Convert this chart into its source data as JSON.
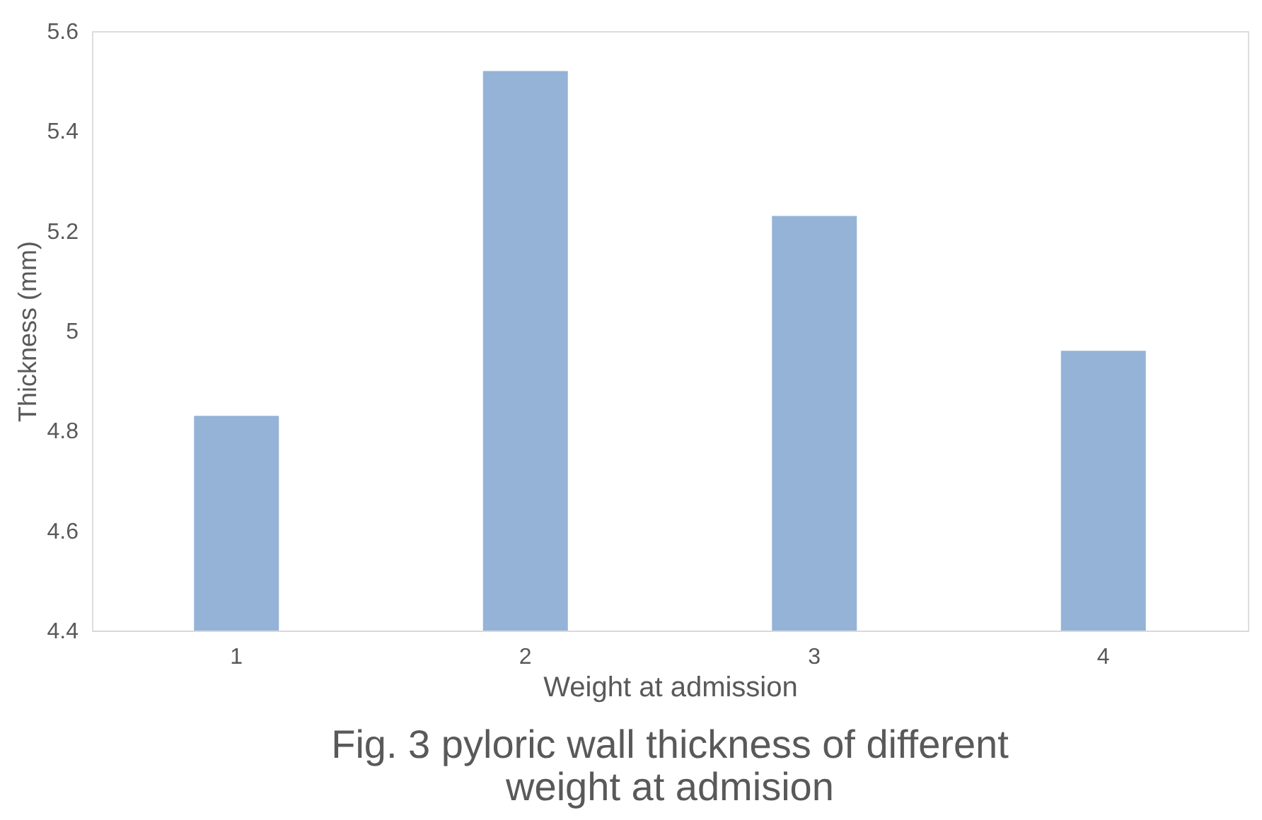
{
  "chart_data": {
    "type": "bar",
    "title": "Fig. 3 pyloric wall thickness of different\nweight at admision",
    "xlabel": "Weight at admission",
    "ylabel": "Thickness (mm)",
    "categories": [
      "1",
      "2",
      "3",
      "4"
    ],
    "values": [
      4.83,
      5.52,
      5.23,
      4.96
    ],
    "color": "#95b3d7",
    "ylim": [
      4.4,
      5.6
    ],
    "yticks": [
      4.4,
      4.6,
      4.8,
      {
        "value": 5,
        "label": "5"
      },
      5.2,
      5.4,
      5.6
    ],
    "grid": false
  }
}
